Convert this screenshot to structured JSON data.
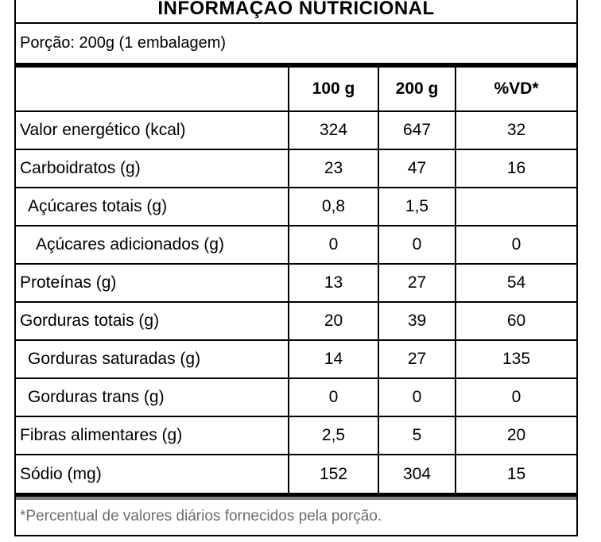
{
  "label": {
    "title": "INFORMAÇÃO NUTRICIONAL",
    "portion": "Porção: 200g (1 embalagem)",
    "footnote": "*Percentual de valores diários fornecidos pela porção."
  },
  "table": {
    "columns": [
      "",
      "100 g",
      "200 g",
      "%VD*"
    ],
    "rows": [
      {
        "label": "Valor energético (kcal)",
        "indent": 0,
        "per100g": "324",
        "per200g": "647",
        "vd": "32"
      },
      {
        "label": "Carboidratos (g)",
        "indent": 0,
        "per100g": "23",
        "per200g": "47",
        "vd": "16"
      },
      {
        "label": "Açúcares totais (g)",
        "indent": 1,
        "per100g": "0,8",
        "per200g": "1,5",
        "vd": ""
      },
      {
        "label": "Açúcares adicionados (g)",
        "indent": 2,
        "per100g": "0",
        "per200g": "0",
        "vd": "0"
      },
      {
        "label": "Proteínas (g)",
        "indent": 0,
        "per100g": "13",
        "per200g": "27",
        "vd": "54"
      },
      {
        "label": "Gorduras totais (g)",
        "indent": 0,
        "per100g": "20",
        "per200g": "39",
        "vd": "60"
      },
      {
        "label": "Gorduras saturadas (g)",
        "indent": 1,
        "per100g": "14",
        "per200g": "27",
        "vd": "135"
      },
      {
        "label": "Gorduras trans (g)",
        "indent": 1,
        "per100g": "0",
        "per200g": "0",
        "vd": "0"
      },
      {
        "label": "Fibras alimentares (g)",
        "indent": 0,
        "per100g": "2,5",
        "per200g": "5",
        "vd": "20"
      },
      {
        "label": "Sódio (mg)",
        "indent": 0,
        "per100g": "152",
        "per200g": "304",
        "vd": "15"
      }
    ]
  },
  "colors": {
    "border": "#000000",
    "bar_gray": "#828282",
    "footnote_text": "#6d6d6d"
  }
}
